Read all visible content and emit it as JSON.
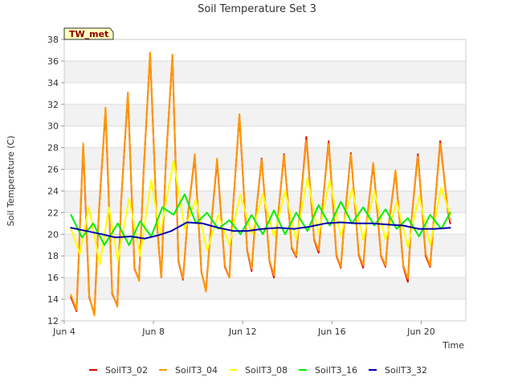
{
  "chart_data": {
    "type": "line",
    "title": "Soil Temperature Set 3",
    "xlabel": "Time",
    "ylabel": "Soil Temperature (C)",
    "station_label": "TW_met",
    "x_unit": "day of June",
    "xlim": [
      4.0,
      22.0
    ],
    "ylim": [
      12,
      38
    ],
    "x_ticks": [
      {
        "value": 4,
        "label": "Jun 4"
      },
      {
        "value": 8,
        "label": "Jun 8"
      },
      {
        "value": 12,
        "label": "Jun 12"
      },
      {
        "value": 16,
        "label": "Jun 16"
      },
      {
        "value": 20,
        "label": "Jun 20"
      }
    ],
    "y_ticks": [
      12,
      14,
      16,
      18,
      20,
      22,
      24,
      26,
      28,
      30,
      32,
      34,
      36,
      38
    ],
    "grid": "horizontal alternating bands",
    "legend_position": "bottom",
    "series": [
      {
        "name": "SoilT3_02",
        "color": "#dd0000",
        "x": [
          4.3,
          4.55,
          4.85,
          5.12,
          5.35,
          5.55,
          5.85,
          6.15,
          6.38,
          6.55,
          6.85,
          7.15,
          7.35,
          7.55,
          7.85,
          8.15,
          8.35,
          8.55,
          8.85,
          9.12,
          9.32,
          9.55,
          9.85,
          10.15,
          10.35,
          10.55,
          10.85,
          11.2,
          11.4,
          11.55,
          11.85,
          12.2,
          12.4,
          12.55,
          12.85,
          13.2,
          13.4,
          13.55,
          13.85,
          14.2,
          14.4,
          14.55,
          14.85,
          15.2,
          15.4,
          15.55,
          15.85,
          16.2,
          16.4,
          16.55,
          16.85,
          17.2,
          17.4,
          17.55,
          17.85,
          18.2,
          18.4,
          18.55,
          18.85,
          19.2,
          19.4,
          19.55,
          19.85,
          20.2,
          20.4,
          20.55,
          20.85,
          21.2,
          21.3
        ],
        "y": [
          14.2,
          12.9,
          28.2,
          14.2,
          12.6,
          22.0,
          31.5,
          14.5,
          13.4,
          23.0,
          33.0,
          16.8,
          15.8,
          25.5,
          36.7,
          21.0,
          16.0,
          26.5,
          36.5,
          17.5,
          15.8,
          22.0,
          27.2,
          16.5,
          14.8,
          20.0,
          26.8,
          17.0,
          16.0,
          22.0,
          31.0,
          18.5,
          16.6,
          21.0,
          27.0,
          17.5,
          16.0,
          21.0,
          27.4,
          18.7,
          17.9,
          22.0,
          29.0,
          19.5,
          18.3,
          22.0,
          28.6,
          18.0,
          16.9,
          21.0,
          27.5,
          18.1,
          16.9,
          21.0,
          26.5,
          18.0,
          17.0,
          21.0,
          25.8,
          17.0,
          15.6,
          21.0,
          27.4,
          18.0,
          17.0,
          21.0,
          28.6,
          22.0,
          21.0
        ]
      },
      {
        "name": "SoilT3_04",
        "color": "#ff9900",
        "x": [
          4.3,
          4.55,
          4.85,
          5.12,
          5.35,
          5.55,
          5.85,
          6.15,
          6.38,
          6.55,
          6.85,
          7.15,
          7.35,
          7.55,
          7.85,
          8.15,
          8.35,
          8.55,
          8.85,
          9.12,
          9.32,
          9.55,
          9.85,
          10.15,
          10.35,
          10.55,
          10.85,
          11.2,
          11.4,
          11.55,
          11.85,
          12.2,
          12.4,
          12.55,
          12.85,
          13.2,
          13.4,
          13.55,
          13.85,
          14.2,
          14.4,
          14.55,
          14.85,
          15.2,
          15.4,
          15.55,
          15.85,
          16.2,
          16.4,
          16.55,
          16.85,
          17.2,
          17.4,
          17.55,
          17.85,
          18.2,
          18.4,
          18.55,
          18.85,
          19.2,
          19.4,
          19.55,
          19.85,
          20.2,
          20.4,
          20.55,
          20.85,
          21.2,
          21.3
        ],
        "y": [
          14.4,
          13.0,
          28.4,
          14.3,
          12.5,
          22.0,
          31.7,
          14.6,
          13.3,
          23.0,
          33.1,
          16.9,
          15.7,
          25.5,
          36.8,
          21.0,
          16.0,
          26.5,
          36.6,
          17.6,
          15.9,
          22.0,
          27.4,
          16.6,
          14.7,
          20.0,
          27.0,
          17.1,
          16.0,
          22.0,
          31.1,
          18.6,
          16.8,
          21.0,
          26.9,
          17.6,
          16.2,
          21.0,
          27.3,
          18.8,
          18.0,
          22.0,
          28.7,
          19.6,
          18.5,
          22.0,
          28.4,
          18.1,
          17.0,
          21.0,
          27.4,
          18.2,
          17.1,
          21.0,
          26.6,
          18.1,
          17.1,
          21.0,
          25.9,
          17.1,
          15.9,
          21.0,
          27.2,
          18.2,
          17.1,
          21.0,
          28.4,
          22.0,
          21.3
        ]
      },
      {
        "name": "SoilT3_08",
        "color": "#ffff00",
        "x": [
          4.3,
          4.7,
          5.1,
          5.6,
          6.0,
          6.4,
          6.9,
          7.4,
          7.9,
          8.3,
          8.9,
          9.4,
          9.9,
          10.4,
          10.9,
          11.4,
          11.9,
          12.4,
          12.9,
          13.4,
          13.9,
          14.4,
          14.9,
          15.4,
          15.9,
          16.4,
          16.9,
          17.4,
          17.9,
          18.4,
          18.9,
          19.4,
          19.9,
          20.4,
          20.9,
          21.3
        ],
        "y": [
          20.5,
          18.2,
          22.5,
          17.2,
          22.5,
          17.5,
          23.3,
          18.0,
          25.0,
          20.0,
          26.8,
          20.5,
          23.2,
          18.5,
          21.8,
          19.0,
          23.7,
          20.0,
          23.7,
          19.8,
          24.0,
          19.5,
          25.2,
          20.0,
          25.0,
          19.8,
          24.2,
          19.5,
          24.0,
          19.5,
          23.0,
          18.8,
          23.5,
          19.0,
          24.3,
          21.8
        ]
      },
      {
        "name": "SoilT3_16",
        "color": "#00ee00",
        "x": [
          4.3,
          4.8,
          5.3,
          5.8,
          6.4,
          6.9,
          7.4,
          7.9,
          8.4,
          8.9,
          9.4,
          9.9,
          10.4,
          10.9,
          11.4,
          11.9,
          12.4,
          12.9,
          13.4,
          13.9,
          14.4,
          14.9,
          15.4,
          15.9,
          16.4,
          16.9,
          17.4,
          17.9,
          18.4,
          18.9,
          19.4,
          19.9,
          20.4,
          20.9,
          21.3
        ],
        "y": [
          21.8,
          19.7,
          21.0,
          19.0,
          21.0,
          19.0,
          21.2,
          19.8,
          22.5,
          21.8,
          23.7,
          21.0,
          22.0,
          20.5,
          21.3,
          20.0,
          21.8,
          20.0,
          22.2,
          20.0,
          22.0,
          20.3,
          22.7,
          20.8,
          23.0,
          21.0,
          22.5,
          20.8,
          22.3,
          20.5,
          21.5,
          19.8,
          21.8,
          20.5,
          22.0
        ]
      },
      {
        "name": "SoilT3_32",
        "color": "#0000aa",
        "x": [
          4.3,
          5.0,
          5.7,
          6.3,
          7.0,
          7.6,
          8.2,
          8.8,
          9.5,
          10.2,
          10.9,
          11.6,
          12.2,
          12.9,
          13.6,
          14.3,
          15.0,
          15.7,
          16.4,
          17.1,
          17.8,
          18.5,
          19.2,
          19.9,
          20.6,
          21.3
        ],
        "y": [
          20.6,
          20.3,
          20.0,
          19.7,
          19.8,
          19.6,
          19.9,
          20.3,
          21.1,
          21.0,
          20.6,
          20.3,
          20.3,
          20.5,
          20.6,
          20.5,
          20.7,
          21.0,
          21.1,
          21.0,
          21.0,
          20.9,
          20.8,
          20.5,
          20.5,
          20.6
        ]
      }
    ]
  }
}
